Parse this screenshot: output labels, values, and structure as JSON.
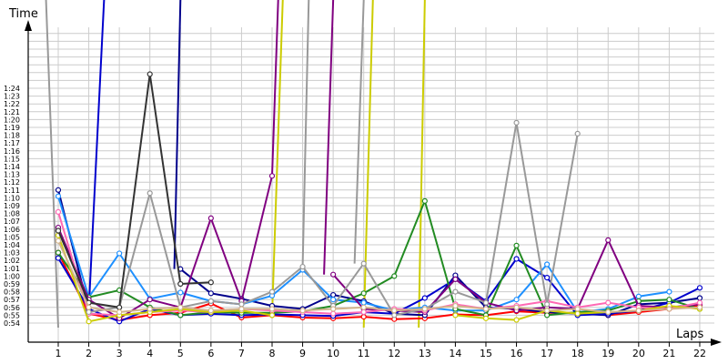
{
  "chart_data": {
    "type": "line",
    "ylabel": "Time",
    "xlabel": "Laps",
    "grid": true,
    "x_ticks": [
      "1",
      "2",
      "3",
      "4",
      "5",
      "6",
      "7",
      "8",
      "9",
      "10",
      "11",
      "12",
      "13",
      "14",
      "15",
      "16",
      "17",
      "18",
      "19",
      "20",
      "21",
      "22"
    ],
    "y_ticks": [
      "0:54",
      "0:55",
      "0:56",
      "0:57",
      "0:58",
      "0:59",
      "1:00",
      "1:01",
      "1:02",
      "1:03",
      "1:04",
      "1:05",
      "1:06",
      "1:07",
      "1:08",
      "1:09",
      "1:10",
      "1:11",
      "1:12",
      "1:13",
      "1:14",
      "1:15",
      "1:16",
      "1:17",
      "1:18",
      "1:19",
      "1:20",
      "1:21",
      "1:22",
      "1:23",
      "1:24"
    ],
    "ylim_seconds": [
      53,
      88
    ],
    "series": [
      {
        "color": "#ff0000",
        "values": [
          63,
          55.2,
          54.4,
          55.0,
          55.3,
          56.5,
          54.7,
          55.0,
          54.7,
          54.6,
          54.8,
          54.5,
          54.6,
          55.1,
          55.0,
          55.5,
          55.3,
          55.3,
          55.0,
          55.4,
          55.8,
          56.2
        ]
      },
      {
        "color": "#00008b",
        "values": [
          71.0,
          55.6,
          null,
          null,
          60.9,
          57.8,
          57.1,
          56.2,
          55.8,
          57.6,
          56.8,
          55.2,
          55.0,
          60.1,
          56.0,
          55.8,
          55.4,
          55.2,
          55.0,
          56.4,
          56.6,
          57.2
        ]
      },
      {
        "color": "#0000cd",
        "values": [
          62.3,
          55.8,
          54.2,
          55.8,
          55.0,
          55.2,
          55.0,
          55.1,
          55.0,
          54.9,
          55.4,
          55.2,
          57.2,
          59.6,
          56.8,
          62.2,
          59.8,
          55.0,
          55.2,
          55.6,
          56.6,
          58.5
        ]
      },
      {
        "color": "#1e90ff",
        "values": [
          70.2,
          57.3,
          62.9,
          57.1,
          57.9,
          56.8,
          56.4,
          57.5,
          60.8,
          57.0,
          56.6,
          55.6,
          56.0,
          55.6,
          55.6,
          57.0,
          61.5,
          55.4,
          55.8,
          57.4,
          58.0,
          null
        ]
      },
      {
        "color": "#228b22",
        "values": [
          63.0,
          57.3,
          58.2,
          56.0,
          55.0,
          55.4,
          55.3,
          55.3,
          55.5,
          56.2,
          57.8,
          60.0,
          69.6,
          55.8,
          55.0,
          63.9,
          55.0,
          55.4,
          55.6,
          56.8,
          57.0,
          55.8
        ]
      },
      {
        "color": "#800080",
        "values": [
          66.2,
          57.0,
          54.6,
          57.0,
          56.0,
          67.4,
          56.8,
          72.8,
          null,
          60.2,
          55.8,
          55.6,
          55.4,
          59.6,
          56.6,
          55.6,
          56.0,
          55.8,
          64.6,
          56.2,
          56.0,
          56.4
        ]
      },
      {
        "color": "#ff69b4",
        "values": [
          68.2,
          55.2,
          55.0,
          55.4,
          55.6,
          55.4,
          55.8,
          55.6,
          55.4,
          55.2,
          55.4,
          55.8,
          55.6,
          56.4,
          55.8,
          56.2,
          56.8,
          56.0,
          56.6,
          56.0,
          55.8,
          56.6
        ]
      },
      {
        "color": "#cccc00",
        "values": [
          65.2,
          54.2,
          55.0,
          55.4,
          55.8,
          55.4,
          55.6,
          55.0,
          null,
          null,
          null,
          null,
          null,
          55.0,
          54.6,
          54.4,
          55.6,
          55.2,
          55.4,
          55.6,
          56.2,
          55.8
        ]
      },
      {
        "color": "#999999",
        "values": [
          null,
          55.4,
          56.0,
          70.6,
          56.0,
          56.8,
          56.4,
          58.0,
          61.2,
          56.2,
          61.6,
          55.0,
          55.8,
          58.0,
          56.6,
          79.6,
          56.4,
          78.2,
          null,
          null,
          null,
          null
        ]
      },
      {
        "color": "#333333",
        "values": [
          65.8,
          56.6,
          56.0,
          85.8,
          59.0,
          59.2,
          null,
          null,
          null,
          null,
          null,
          null,
          null,
          null,
          null,
          null,
          null,
          null,
          null,
          null,
          null,
          null
        ]
      },
      {
        "color": "#d2b48c",
        "values": [
          64.5,
          56.0,
          55.4,
          55.8,
          56.0,
          55.6,
          55.8,
          55.8,
          55.6,
          55.8,
          56.0,
          55.6,
          55.8,
          56.2,
          55.8,
          56.0,
          55.6,
          55.8,
          55.4,
          55.6,
          55.8,
          56.0
        ]
      }
    ],
    "spikes": [
      {
        "color": "#999999",
        "from_x": 1,
        "to_x": 0.6
      },
      {
        "color": "#0000cd",
        "from_x": 2,
        "to_x": 2.5
      },
      {
        "color": "#00008b",
        "from_x": 4.8,
        "to_x": 5
      },
      {
        "color": "#800080",
        "from_x": 8,
        "to_x": 8.2
      },
      {
        "color": "#cccc00",
        "from_x": 8,
        "to_x": 8.35
      },
      {
        "color": "#999999",
        "from_x": 9,
        "to_x": 9.2
      },
      {
        "color": "#800080",
        "from_x": 9.7,
        "to_x": 10
      },
      {
        "color": "#999999",
        "from_x": 10.7,
        "to_x": 11
      },
      {
        "color": "#cccc00",
        "from_x": 11,
        "to_x": 11.3
      },
      {
        "color": "#cccc00",
        "from_x": 12.8,
        "to_x": 13
      }
    ]
  }
}
